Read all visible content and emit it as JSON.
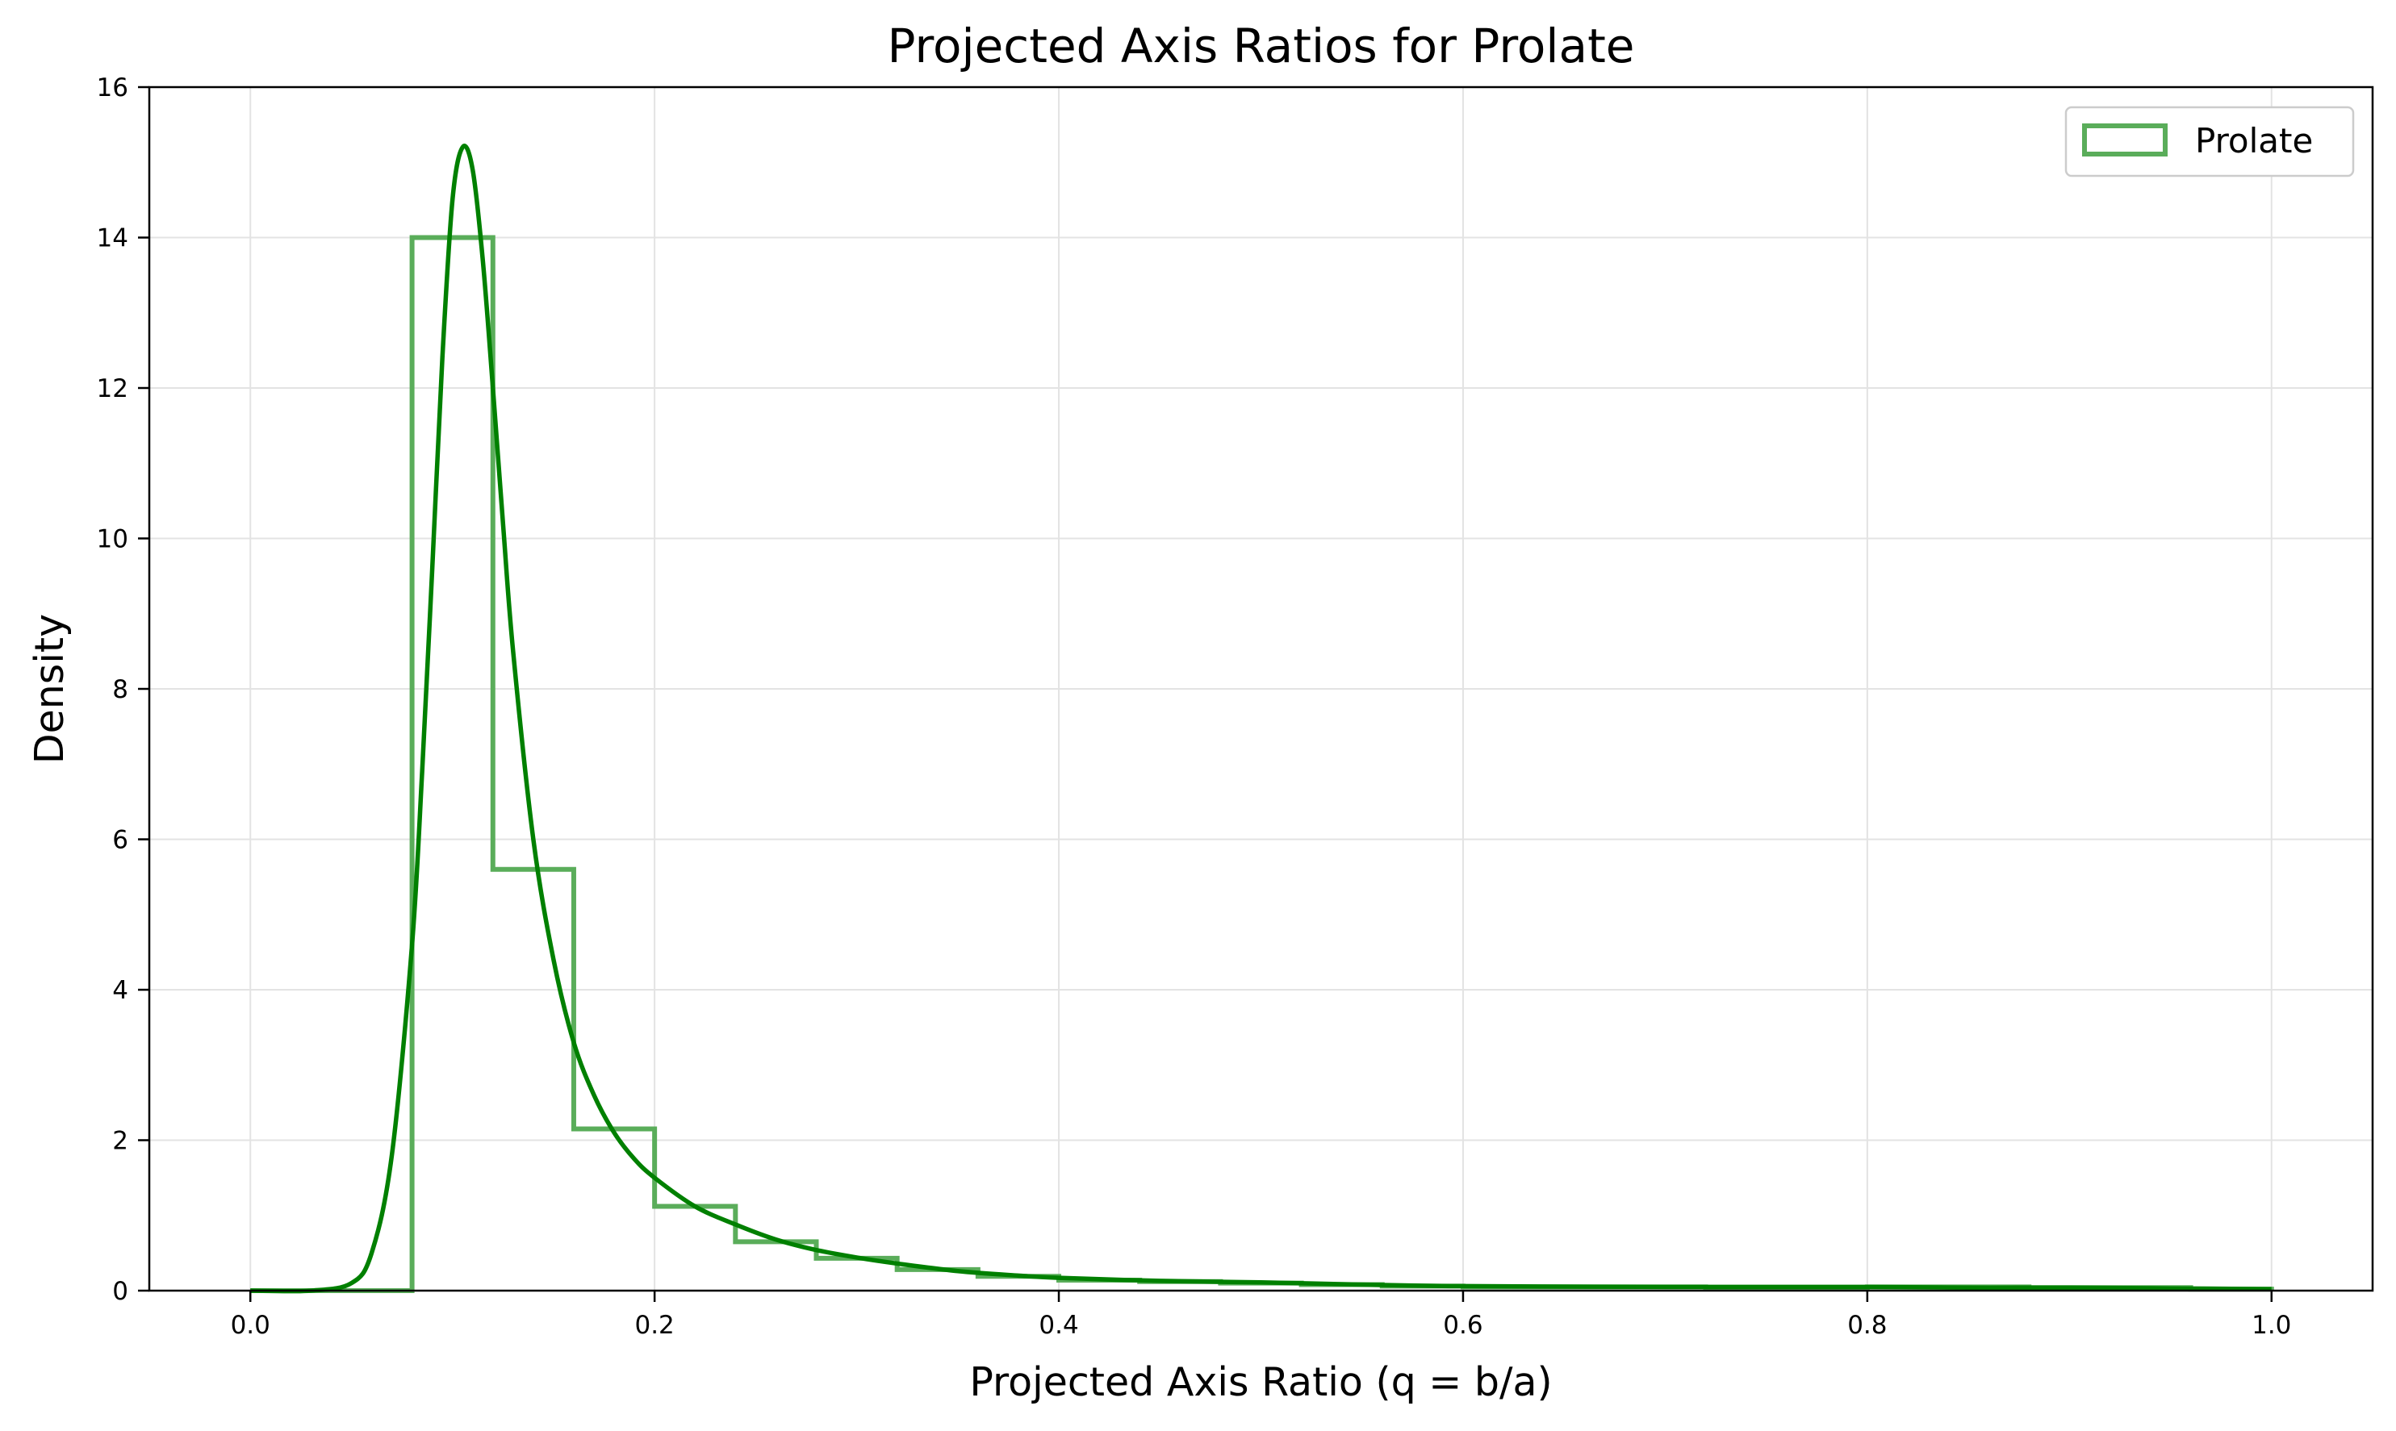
{
  "chart_data": {
    "type": "histogram",
    "title": "Projected Axis Ratios for Prolate",
    "xlabel": "Projected Axis Ratio (q = b/a)",
    "ylabel": "Density",
    "xlim": [
      -0.05,
      1.05
    ],
    "ylim": [
      0,
      16
    ],
    "grid": true,
    "legend_position": "top-right",
    "x_ticks": [
      "0.0",
      "0.2",
      "0.4",
      "0.6",
      "0.8",
      "1.0"
    ],
    "y_ticks": [
      "0",
      "2",
      "4",
      "6",
      "8",
      "10",
      "12",
      "14",
      "16"
    ],
    "colors": {
      "histogram": "#5aad5a",
      "kde": "#008000",
      "grid": "#e3e3e3"
    },
    "series": [
      {
        "name": "Prolate",
        "kind": "step-histogram",
        "bin_edges": [
          0.0,
          0.04,
          0.08,
          0.12,
          0.16,
          0.2,
          0.24,
          0.28,
          0.32,
          0.36,
          0.4,
          0.44,
          0.48,
          0.52,
          0.56,
          0.6,
          0.64,
          0.68,
          0.72,
          0.76,
          0.8,
          0.84,
          0.88,
          0.92,
          0.96,
          1.0
        ],
        "values": [
          0,
          0,
          14.0,
          5.6,
          2.15,
          1.12,
          0.65,
          0.43,
          0.28,
          0.19,
          0.14,
          0.12,
          0.1,
          0.08,
          0.06,
          0.05,
          0.05,
          0.05,
          0.04,
          0.04,
          0.05,
          0.05,
          0.04,
          0.04,
          0.02
        ]
      },
      {
        "kind": "kde-line",
        "x": [
          0.0,
          0.03,
          0.05,
          0.06,
          0.07,
          0.08,
          0.085,
          0.09,
          0.095,
          0.1,
          0.105,
          0.11,
          0.115,
          0.12,
          0.125,
          0.13,
          0.14,
          0.15,
          0.16,
          0.17,
          0.18,
          0.19,
          0.2,
          0.22,
          0.24,
          0.26,
          0.28,
          0.3,
          0.32,
          0.35,
          0.38,
          0.4,
          0.45,
          0.5,
          0.55,
          0.6,
          0.7,
          0.8,
          0.85,
          0.9,
          0.95,
          1.0
        ],
        "y": [
          0.0,
          0.0,
          0.1,
          0.5,
          1.8,
          4.6,
          6.9,
          9.6,
          12.4,
          14.5,
          15.2,
          14.9,
          13.7,
          12.0,
          10.2,
          8.5,
          6.0,
          4.4,
          3.3,
          2.6,
          2.1,
          1.75,
          1.5,
          1.12,
          0.88,
          0.68,
          0.54,
          0.44,
          0.36,
          0.26,
          0.2,
          0.17,
          0.13,
          0.11,
          0.08,
          0.06,
          0.05,
          0.05,
          0.04,
          0.04,
          0.03,
          0.02
        ]
      }
    ]
  }
}
